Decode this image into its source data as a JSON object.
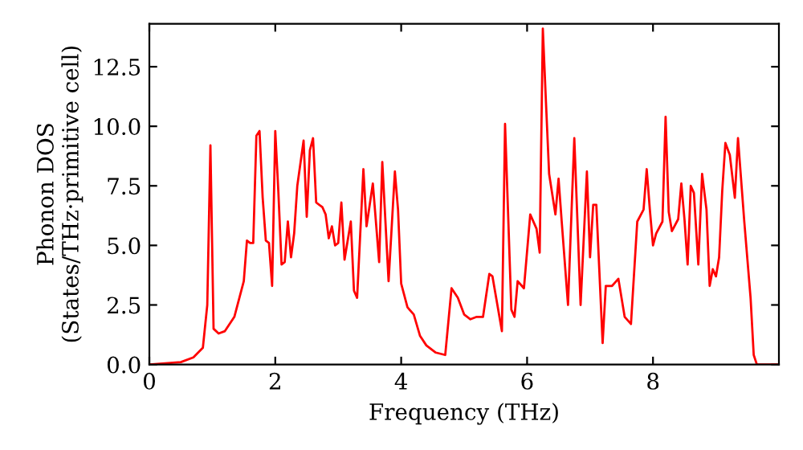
{
  "chart_data": {
    "type": "line",
    "xlabel": "Frequency (THz)",
    "ylabel": "Phonon DOS\n(States/THz·primitive cell)",
    "xlim": [
      0,
      10
    ],
    "ylim": [
      0,
      14.3
    ],
    "xticks": [
      0,
      2,
      4,
      6,
      8
    ],
    "yticks": [
      {
        "value": 0,
        "label": "0.0"
      },
      2.5,
      {
        "value": 5,
        "label": "5.0"
      },
      7.5,
      {
        "value": 10,
        "label": "10.0"
      },
      12.5
    ],
    "grid": false,
    "marker": "none",
    "line_style": "solid",
    "series": [
      {
        "color": "#ff0000",
        "x": [
          0,
          0.5,
          0.7,
          0.85,
          0.92,
          0.97,
          1.02,
          1.1,
          1.2,
          1.35,
          1.5,
          1.55,
          1.6,
          1.65,
          1.7,
          1.75,
          1.8,
          1.85,
          1.9,
          1.95,
          2.0,
          2.05,
          2.1,
          2.15,
          2.2,
          2.25,
          2.3,
          2.35,
          2.45,
          2.5,
          2.55,
          2.6,
          2.65,
          2.75,
          2.8,
          2.85,
          2.9,
          2.95,
          3.0,
          3.05,
          3.1,
          3.2,
          3.25,
          3.3,
          3.4,
          3.45,
          3.55,
          3.65,
          3.7,
          3.8,
          3.9,
          3.95,
          4.0,
          4.1,
          4.2,
          4.3,
          4.4,
          4.55,
          4.7,
          4.8,
          4.9,
          5.0,
          5.1,
          5.2,
          5.3,
          5.4,
          5.45,
          5.6,
          5.65,
          5.75,
          5.8,
          5.85,
          5.95,
          6.05,
          6.15,
          6.2,
          6.25,
          6.3,
          6.35,
          6.45,
          6.5,
          6.55,
          6.65,
          6.75,
          6.85,
          6.95,
          7.0,
          7.05,
          7.1,
          7.2,
          7.25,
          7.35,
          7.45,
          7.55,
          7.65,
          7.75,
          7.85,
          7.9,
          7.95,
          8.0,
          8.05,
          8.15,
          8.2,
          8.25,
          8.3,
          8.4,
          8.45,
          8.5,
          8.55,
          8.6,
          8.65,
          8.72,
          8.78,
          8.85,
          8.9,
          8.95,
          9.0,
          9.05,
          9.1,
          9.15,
          9.22,
          9.3,
          9.35,
          9.45,
          9.55,
          9.6,
          9.65,
          10
        ],
        "values": [
          0,
          0.1,
          0.3,
          0.7,
          2.5,
          9.2,
          1.5,
          1.3,
          1.4,
          2.0,
          3.5,
          5.2,
          5.1,
          5.1,
          9.6,
          9.8,
          7.0,
          5.2,
          5.1,
          3.3,
          9.8,
          7.2,
          4.2,
          4.3,
          6.0,
          4.5,
          5.5,
          7.5,
          9.4,
          6.2,
          9.0,
          9.5,
          6.8,
          6.6,
          6.3,
          5.3,
          5.8,
          5.0,
          5.1,
          6.8,
          4.4,
          6.0,
          3.1,
          2.8,
          8.2,
          5.8,
          7.6,
          4.3,
          8.5,
          3.5,
          8.1,
          6.5,
          3.4,
          2.4,
          2.1,
          1.2,
          0.8,
          0.5,
          0.4,
          3.2,
          2.8,
          2.1,
          1.9,
          2.0,
          2.0,
          3.8,
          3.7,
          1.4,
          10.1,
          2.3,
          2.0,
          3.5,
          3.2,
          6.3,
          5.7,
          4.7,
          14.1,
          11,
          8,
          6.3,
          7.8,
          6,
          2.5,
          9.5,
          2.5,
          8.1,
          4.5,
          6.7,
          6.7,
          0.9,
          3.3,
          3.3,
          3.6,
          2.0,
          1.7,
          6.0,
          6.5,
          8.2,
          6.5,
          5.0,
          5.5,
          6.0,
          10.4,
          6.4,
          5.6,
          6.1,
          7.6,
          6.1,
          4.2,
          7.5,
          7.2,
          4.2,
          8.0,
          6.5,
          3.3,
          4.0,
          3.7,
          4.5,
          7.3,
          9.3,
          8.8,
          7.0,
          9.5,
          6.0,
          2.8,
          0.4,
          0,
          0
        ]
      }
    ]
  }
}
